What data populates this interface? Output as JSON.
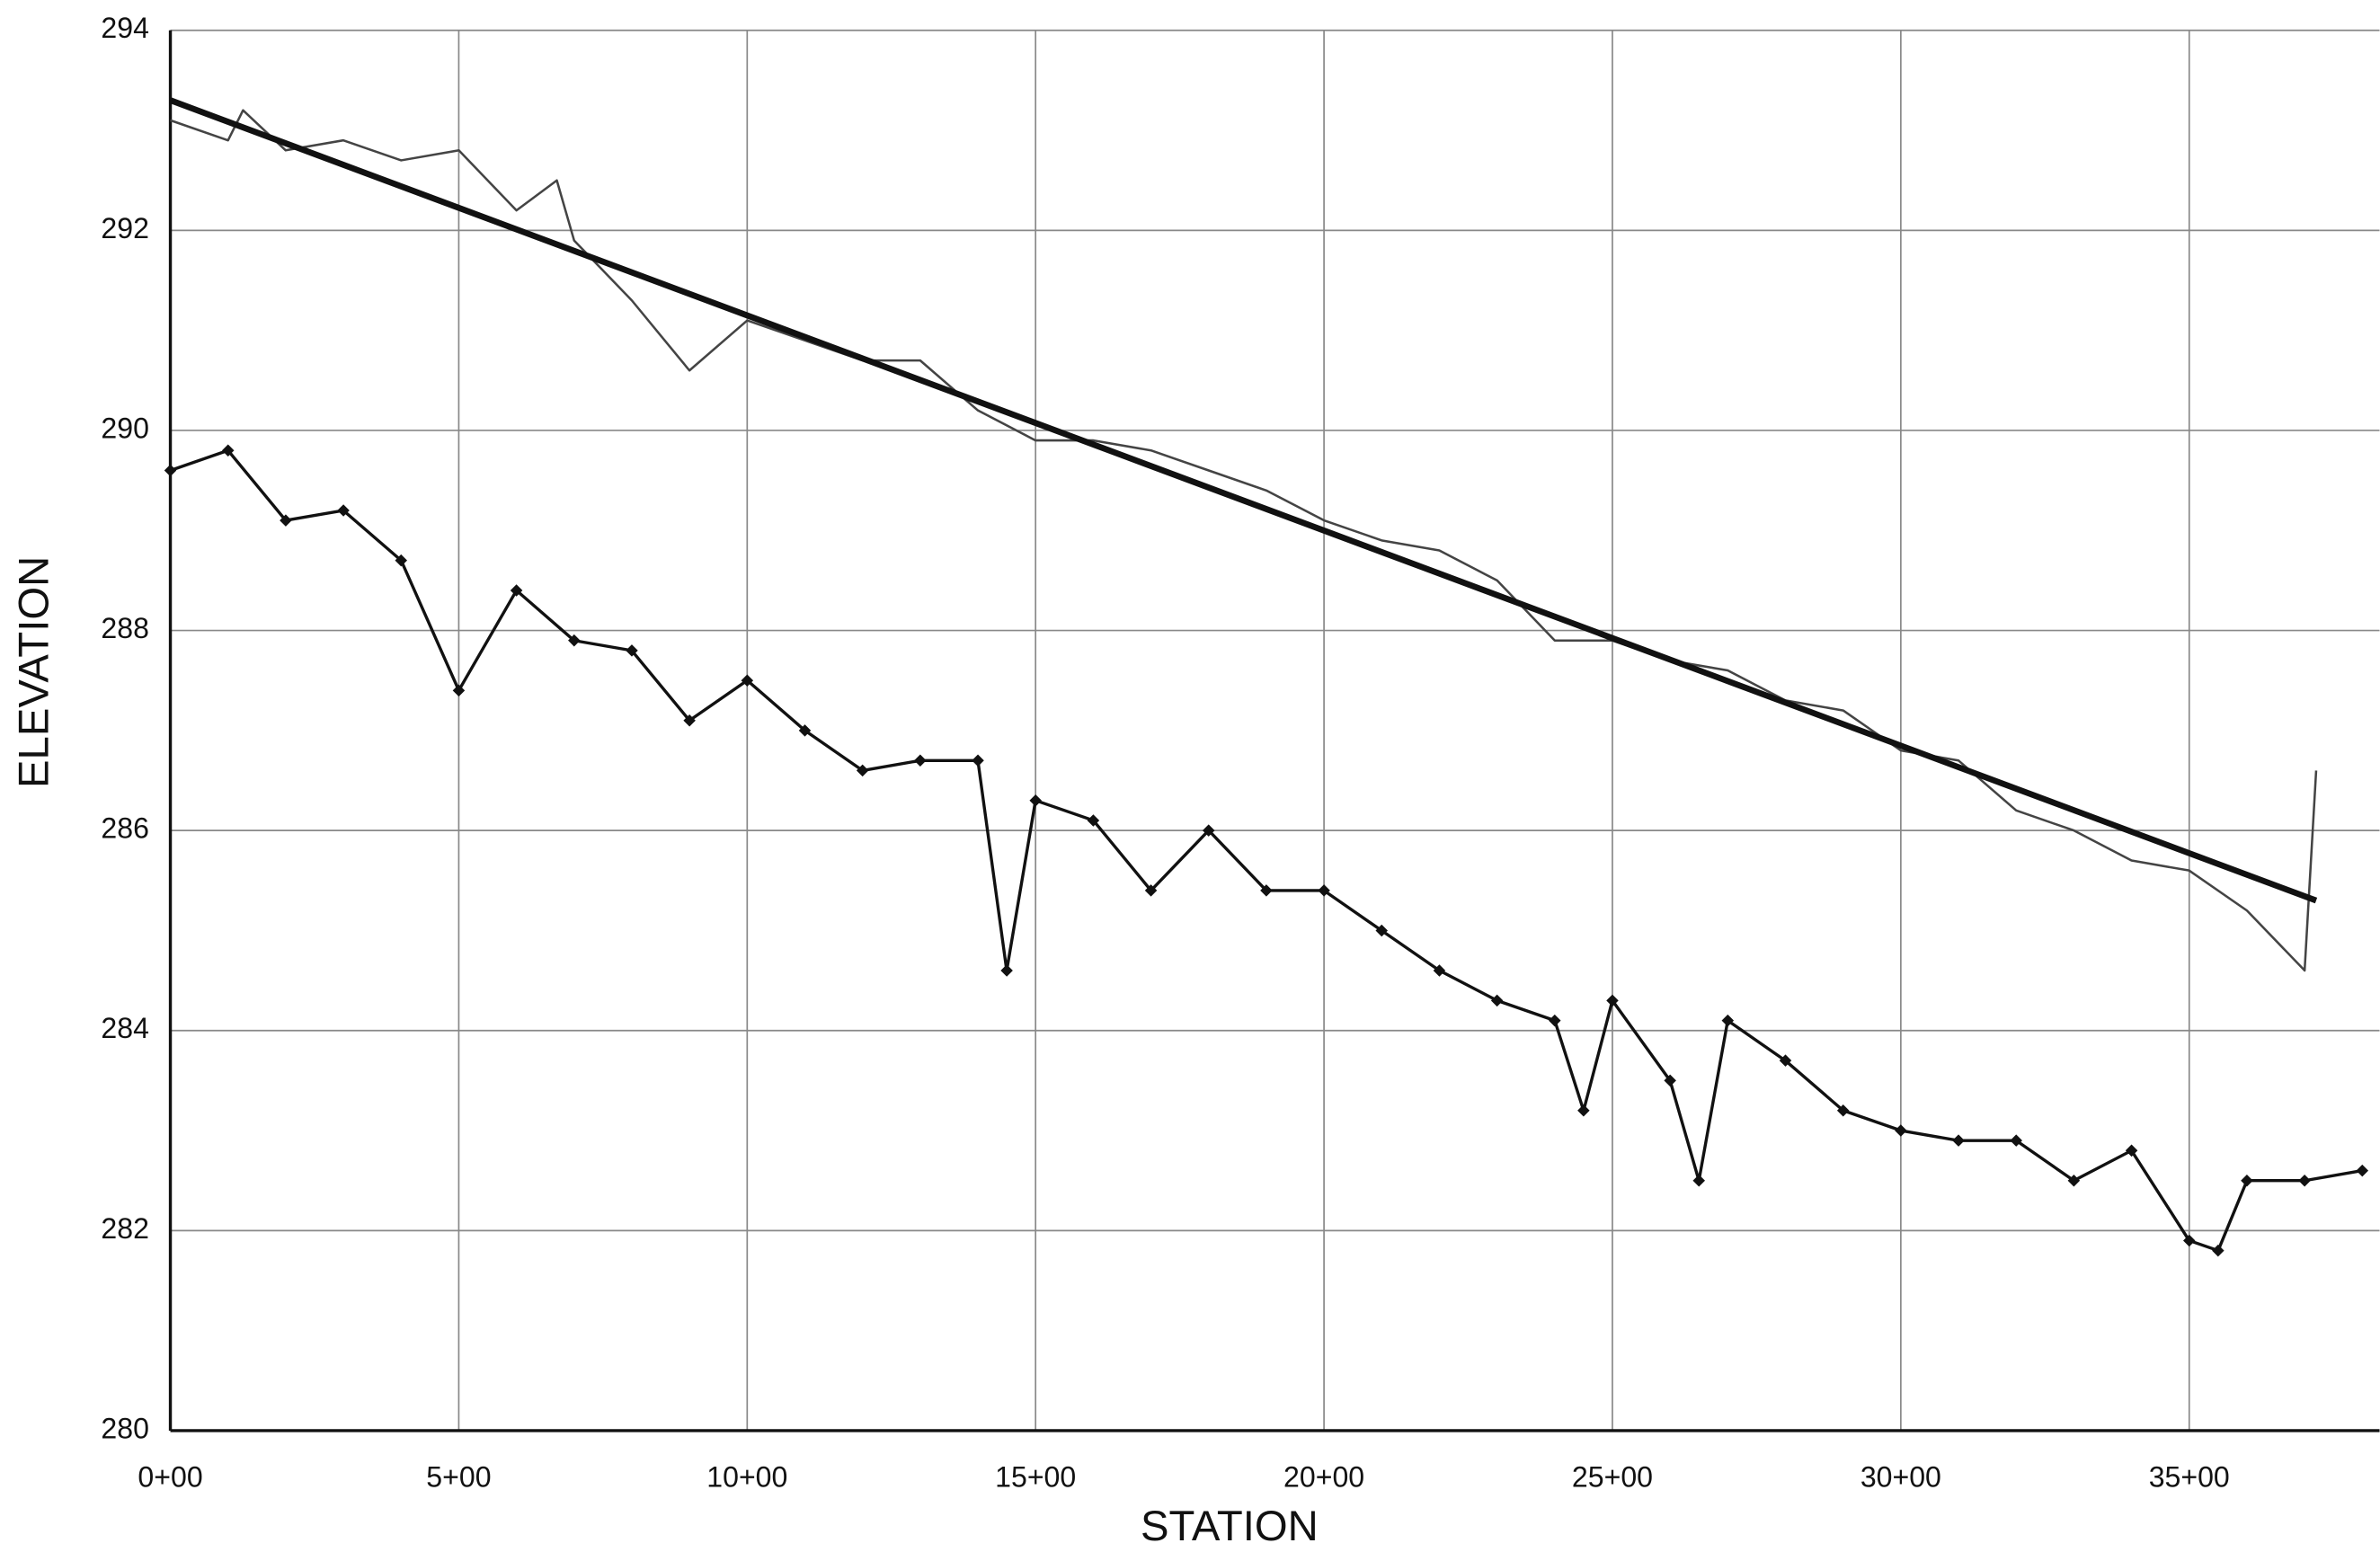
{
  "chart_data": {
    "type": "line",
    "xlabel": "STATION",
    "ylabel": "ELEVATION",
    "xlim": [
      0,
      3830
    ],
    "ylim": [
      280,
      294
    ],
    "xticks": [
      {
        "value": 0,
        "label": "0+00"
      },
      {
        "value": 500,
        "label": "5+00"
      },
      {
        "value": 1000,
        "label": "10+00"
      },
      {
        "value": 1500,
        "label": "15+00"
      },
      {
        "value": 2000,
        "label": "20+00"
      },
      {
        "value": 2500,
        "label": "25+00"
      },
      {
        "value": 3000,
        "label": "30+00"
      },
      {
        "value": 3500,
        "label": "35+00"
      }
    ],
    "yticks": [
      280,
      282,
      284,
      286,
      288,
      290,
      292,
      294
    ],
    "grid": true,
    "series": [
      {
        "color": "#444444",
        "width": 1.5,
        "markers": false,
        "x": [
          0,
          100,
          126,
          200,
          300,
          400,
          500,
          600,
          670,
          700,
          800,
          900,
          1000,
          1100,
          1200,
          1300,
          1400,
          1500,
          1600,
          1700,
          1800,
          1900,
          2000,
          2100,
          2200,
          2300,
          2400,
          2500,
          2600,
          2700,
          2800,
          2900,
          3000,
          3100,
          3200,
          3300,
          3400,
          3500,
          3600,
          3700,
          3720
        ],
        "values": [
          293.1,
          292.9,
          293.2,
          292.8,
          292.9,
          292.7,
          292.8,
          292.2,
          292.5,
          291.9,
          291.3,
          290.6,
          291.1,
          290.9,
          290.7,
          290.7,
          290.2,
          289.9,
          289.9,
          289.8,
          289.6,
          289.4,
          289.1,
          288.9,
          288.8,
          288.5,
          287.9,
          287.9,
          287.7,
          287.6,
          287.3,
          287.2,
          286.8,
          286.7,
          286.2,
          286.0,
          285.7,
          285.6,
          285.2,
          284.6,
          286.6
        ]
      },
      {
        "color": "#111111",
        "width": 4,
        "markers": false,
        "x": [
          0,
          3720
        ],
        "values": [
          293.3,
          285.3
        ]
      },
      {
        "color": "#111111",
        "width": 2,
        "markers": true,
        "x": [
          0,
          100,
          200,
          300,
          400,
          500,
          600,
          700,
          800,
          900,
          1000,
          1100,
          1200,
          1300,
          1400,
          1450,
          1500,
          1600,
          1700,
          1800,
          1900,
          2000,
          2100,
          2200,
          2300,
          2400,
          2450,
          2500,
          2600,
          2650,
          2700,
          2800,
          2900,
          3000,
          3100,
          3200,
          3300,
          3400,
          3500,
          3550,
          3600,
          3700,
          3800
        ],
        "values": [
          289.6,
          289.8,
          289.1,
          289.2,
          288.7,
          287.4,
          288.4,
          287.9,
          287.8,
          287.1,
          287.5,
          287.0,
          286.6,
          286.7,
          286.7,
          284.6,
          286.3,
          286.1,
          285.4,
          286.0,
          285.4,
          285.4,
          285.0,
          284.6,
          284.3,
          284.1,
          283.2,
          284.3,
          283.5,
          282.5,
          284.1,
          283.7,
          283.2,
          283.0,
          282.9,
          282.9,
          282.5,
          282.8,
          281.9,
          281.8,
          282.5,
          282.5,
          282.6
        ]
      }
    ]
  }
}
